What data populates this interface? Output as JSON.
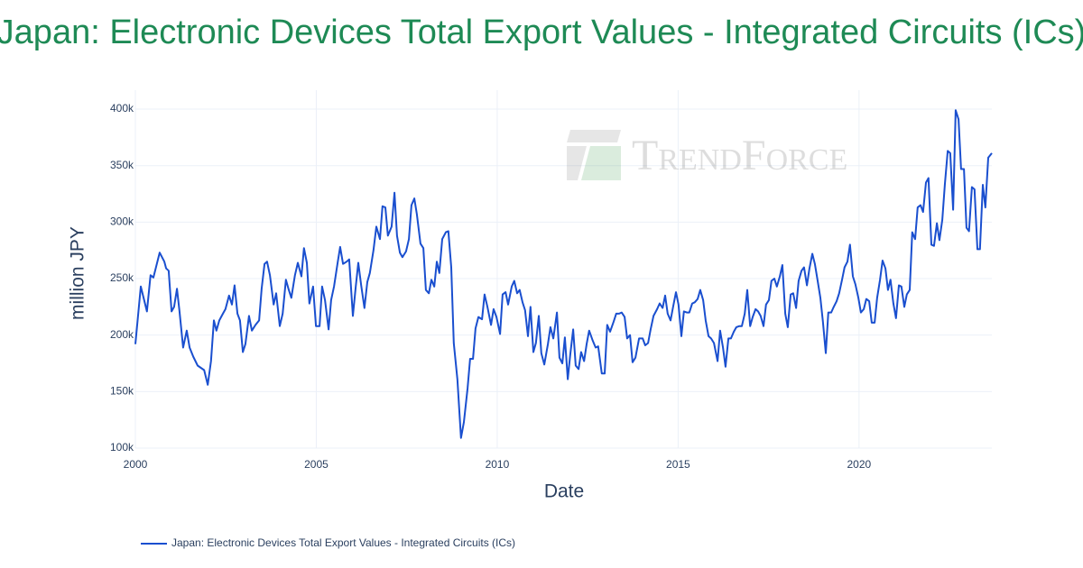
{
  "chart_data": {
    "type": "line",
    "title": "Japan: Electronic Devices Total Export Values - Integrated Circuits (ICs)",
    "xlabel": "Date",
    "ylabel": "million JPY",
    "watermark": "TrendForce",
    "xlim": [
      2000,
      2023.67
    ],
    "xticks": [
      2000,
      2005,
      2010,
      2015,
      2020
    ],
    "ylim": [
      97600,
      416800
    ],
    "yticks": [
      {
        "value": 100000,
        "label": "100k"
      },
      {
        "value": 150000,
        "label": "150k"
      },
      {
        "value": 200000,
        "label": "200k"
      },
      {
        "value": 250000,
        "label": "250k"
      },
      {
        "value": 300000,
        "label": "300k"
      },
      {
        "value": 350000,
        "label": "350k"
      },
      {
        "value": 400000,
        "label": "400k"
      }
    ],
    "grid": true,
    "legend": "bottom-left",
    "x": [
      2000.0,
      2000.15,
      2000.32,
      2000.42,
      2000.5,
      2000.67,
      2000.8,
      2000.85,
      2000.92,
      2001.0,
      2001.07,
      2001.15,
      2001.22,
      2001.32,
      2001.42,
      2001.5,
      2001.6,
      2001.72,
      2001.9,
      2002.0,
      2002.09,
      2002.17,
      2002.24,
      2002.32,
      2002.42,
      2002.49,
      2002.59,
      2002.67,
      2002.74,
      2002.82,
      2002.89,
      2002.97,
      2003.04,
      2003.14,
      2003.22,
      2003.32,
      2003.42,
      2003.49,
      2003.57,
      2003.64,
      2003.72,
      2003.82,
      2003.89,
      2003.99,
      2004.07,
      2004.16,
      2004.24,
      2004.31,
      2004.41,
      2004.49,
      2004.59,
      2004.66,
      2004.74,
      2004.81,
      2004.91,
      2004.99,
      2005.09,
      2005.16,
      2005.24,
      2005.34,
      2005.41,
      2005.49,
      2005.59,
      2005.66,
      2005.74,
      2005.84,
      2005.91,
      2006.01,
      2006.09,
      2006.16,
      2006.24,
      2006.33,
      2006.41,
      2006.48,
      2006.58,
      2006.66,
      2006.76,
      2006.83,
      2006.91,
      2006.98,
      2007.08,
      2007.16,
      2007.23,
      2007.31,
      2007.38,
      2007.48,
      2007.56,
      2007.63,
      2007.71,
      2007.78,
      2007.88,
      2007.96,
      2008.03,
      2008.11,
      2008.18,
      2008.26,
      2008.33,
      2008.4,
      2008.48,
      2008.58,
      2008.65,
      2008.73,
      2008.8,
      2008.9,
      2009.0,
      2009.08,
      2009.18,
      2009.25,
      2009.33,
      2009.4,
      2009.48,
      2009.58,
      2009.65,
      2009.73,
      2009.83,
      2009.9,
      2009.98,
      2010.08,
      2010.15,
      2010.23,
      2010.3,
      2010.4,
      2010.47,
      2010.55,
      2010.62,
      2010.7,
      2010.77,
      2010.85,
      2010.92,
      2011.0,
      2011.07,
      2011.15,
      2011.22,
      2011.3,
      2011.4,
      2011.47,
      2011.55,
      2011.65,
      2011.72,
      2011.8,
      2011.87,
      2011.95,
      2012.02,
      2012.1,
      2012.17,
      2012.25,
      2012.32,
      2012.4,
      2012.47,
      2012.54,
      2012.64,
      2012.72,
      2012.79,
      2012.89,
      2012.97,
      2013.04,
      2013.12,
      2013.22,
      2013.29,
      2013.37,
      2013.44,
      2013.52,
      2013.59,
      2013.67,
      2013.74,
      2013.82,
      2013.92,
      2014.02,
      2014.09,
      2014.17,
      2014.24,
      2014.32,
      2014.42,
      2014.49,
      2014.57,
      2014.64,
      2014.71,
      2014.79,
      2014.86,
      2014.94,
      2015.01,
      2015.09,
      2015.16,
      2015.24,
      2015.31,
      2015.39,
      2015.46,
      2015.54,
      2015.61,
      2015.69,
      2015.76,
      2015.84,
      2015.91,
      2015.99,
      2016.09,
      2016.16,
      2016.24,
      2016.31,
      2016.39,
      2016.46,
      2016.54,
      2016.61,
      2016.69,
      2016.76,
      2016.84,
      2016.91,
      2016.99,
      2017.06,
      2017.14,
      2017.21,
      2017.28,
      2017.36,
      2017.43,
      2017.51,
      2017.58,
      2017.66,
      2017.73,
      2017.81,
      2017.88,
      2017.96,
      2018.03,
      2018.11,
      2018.18,
      2018.26,
      2018.33,
      2018.41,
      2018.48,
      2018.56,
      2018.63,
      2018.71,
      2018.78,
      2018.85,
      2018.93,
      2019.0,
      2019.08,
      2019.15,
      2019.23,
      2019.3,
      2019.38,
      2019.45,
      2019.53,
      2019.6,
      2019.68,
      2019.75,
      2019.83,
      2019.9,
      2019.98,
      2020.05,
      2020.13,
      2020.2,
      2020.28,
      2020.35,
      2020.43,
      2020.5,
      2020.58,
      2020.65,
      2020.73,
      2020.8,
      2020.87,
      2020.95,
      2021.02,
      2021.1,
      2021.17,
      2021.25,
      2021.32,
      2021.4,
      2021.47,
      2021.55,
      2021.62,
      2021.7,
      2021.77,
      2021.85,
      2021.92,
      2022.0,
      2022.07,
      2022.15,
      2022.22,
      2022.3,
      2022.37,
      2022.45,
      2022.52,
      2022.6,
      2022.67,
      2022.75,
      2022.82,
      2022.9,
      2022.97,
      2023.04,
      2023.12,
      2023.19,
      2023.27,
      2023.34,
      2023.42,
      2023.49,
      2023.57,
      2023.67
    ],
    "series": [
      {
        "name": "Japan: Electronic Devices Total Export Values - Integrated Circuits (ICs)",
        "color": "#1a4fcf",
        "values": [
          192000,
          243000,
          221000,
          253000,
          251000,
          273000,
          265000,
          259000,
          257000,
          221000,
          225000,
          241000,
          221000,
          189000,
          204000,
          189000,
          181000,
          173000,
          169000,
          156000,
          177000,
          213000,
          204000,
          213000,
          219000,
          223000,
          235000,
          227000,
          244000,
          219000,
          213000,
          185000,
          192000,
          217000,
          204000,
          209000,
          213000,
          241000,
          263000,
          265000,
          253000,
          227000,
          237000,
          208000,
          219000,
          249000,
          240000,
          233000,
          253000,
          264000,
          252000,
          277000,
          264000,
          228000,
          243000,
          208000,
          208000,
          243000,
          231000,
          205000,
          231000,
          243000,
          264000,
          278000,
          263000,
          265000,
          267000,
          217000,
          243000,
          264000,
          244000,
          224000,
          247000,
          255000,
          275000,
          296000,
          285000,
          314000,
          313000,
          288000,
          296000,
          326000,
          288000,
          273000,
          269000,
          274000,
          285000,
          315000,
          321000,
          307000,
          281000,
          277000,
          240000,
          237000,
          249000,
          243000,
          265000,
          255000,
          285000,
          291000,
          292000,
          260000,
          193000,
          161000,
          109000,
          123000,
          153000,
          179000,
          179000,
          206000,
          216000,
          214000,
          236000,
          225000,
          209000,
          223000,
          216000,
          201000,
          236000,
          238000,
          227000,
          243000,
          248000,
          237000,
          240000,
          229000,
          222000,
          199000,
          225000,
          185000,
          193000,
          217000,
          184000,
          174000,
          192000,
          207000,
          197000,
          220000,
          180000,
          175000,
          198000,
          161000,
          183000,
          205000,
          173000,
          170000,
          185000,
          177000,
          192000,
          204000,
          195000,
          189000,
          190000,
          166000,
          166000,
          209000,
          203000,
          212000,
          219000,
          219000,
          220000,
          216000,
          197000,
          200000,
          176000,
          180000,
          197000,
          197000,
          191000,
          193000,
          205000,
          217000,
          223000,
          228000,
          224000,
          235000,
          219000,
          213000,
          225000,
          238000,
          227000,
          199000,
          221000,
          220000,
          220000,
          228000,
          229000,
          232000,
          240000,
          231000,
          213000,
          199000,
          197000,
          193000,
          177000,
          204000,
          189000,
          172000,
          197000,
          197000,
          203000,
          207000,
          208000,
          208000,
          219000,
          240000,
          208000,
          216000,
          223000,
          221000,
          217000,
          208000,
          227000,
          231000,
          248000,
          250000,
          243000,
          252000,
          262000,
          219000,
          207000,
          236000,
          237000,
          224000,
          248000,
          257000,
          260000,
          244000,
          259000,
          272000,
          263000,
          249000,
          233000,
          212000,
          184000,
          220000,
          220000,
          225000,
          230000,
          237000,
          249000,
          260000,
          265000,
          280000,
          252000,
          245000,
          233000,
          220000,
          223000,
          232000,
          230000,
          211000,
          211000,
          233000,
          249000,
          266000,
          259000,
          240000,
          249000,
          228000,
          215000,
          244000,
          243000,
          225000,
          236000,
          240000,
          291000,
          285000,
          313000,
          315000,
          309000,
          335000,
          339000,
          280000,
          279000,
          299000,
          284000,
          302000,
          333000,
          363000,
          361000,
          311000,
          399000,
          391000,
          347000,
          347000,
          295000,
          292000,
          331000,
          329000,
          276000,
          276000,
          333000,
          313000,
          357000,
          361000
        ]
      }
    ]
  }
}
